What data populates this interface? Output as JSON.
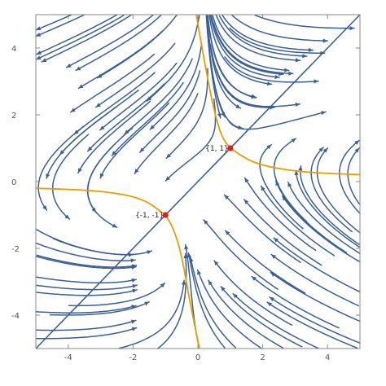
{
  "chart_data": {
    "type": "streamplot",
    "title": "",
    "xlabel": "",
    "ylabel": "",
    "xlim": [
      -5,
      5
    ],
    "ylim": [
      -5,
      5
    ],
    "grid": false,
    "frame": true,
    "x_ticks": [
      -4,
      -2,
      0,
      2,
      4
    ],
    "y_ticks": [
      -4,
      -2,
      0,
      2,
      4
    ],
    "x_tick_labels": [
      "-4",
      "-2",
      "0",
      "2",
      "4"
    ],
    "y_tick_labels": [
      "-4",
      "-2",
      "0",
      "2",
      "4"
    ],
    "vector_field": {
      "u": "x - y^2 + 0 * 1",
      "v": "x*y - 1"
    },
    "stream_color": "#3a5f94",
    "separatrix_color": "#e69f00",
    "point_color": "#e0201c",
    "diagonal_line": {
      "slope": 1,
      "intercept": 0,
      "color": "#3a5f94"
    },
    "critical_points": [
      {
        "x": 1,
        "y": 1,
        "label": "{1, 1}"
      },
      {
        "x": -1,
        "y": -1,
        "label": "{-1, -1}"
      }
    ],
    "separatrices": [
      {
        "name": "upper-vertical",
        "points": [
          [
            -0.05,
            5
          ],
          [
            0.2,
            3.6
          ],
          [
            0.5,
            2.1
          ],
          [
            0.75,
            1.3
          ],
          [
            1,
            1
          ]
        ]
      },
      {
        "name": "upper-horizontal",
        "points": [
          [
            1,
            1
          ],
          [
            1.7,
            0.55
          ],
          [
            2.8,
            0.33
          ],
          [
            4,
            0.24
          ],
          [
            5,
            0.21
          ]
        ]
      },
      {
        "name": "lower-horizontal",
        "points": [
          [
            -5,
            -0.2
          ],
          [
            -4,
            -0.23
          ],
          [
            -2.8,
            -0.3
          ],
          [
            -1.7,
            -0.5
          ],
          [
            -1,
            -1
          ]
        ]
      },
      {
        "name": "lower-vertical",
        "points": [
          [
            -1,
            -1
          ],
          [
            -0.75,
            -1.4
          ],
          [
            -0.5,
            -2.2
          ],
          [
            -0.25,
            -3.6
          ],
          [
            0.05,
            -5
          ]
        ]
      }
    ]
  }
}
